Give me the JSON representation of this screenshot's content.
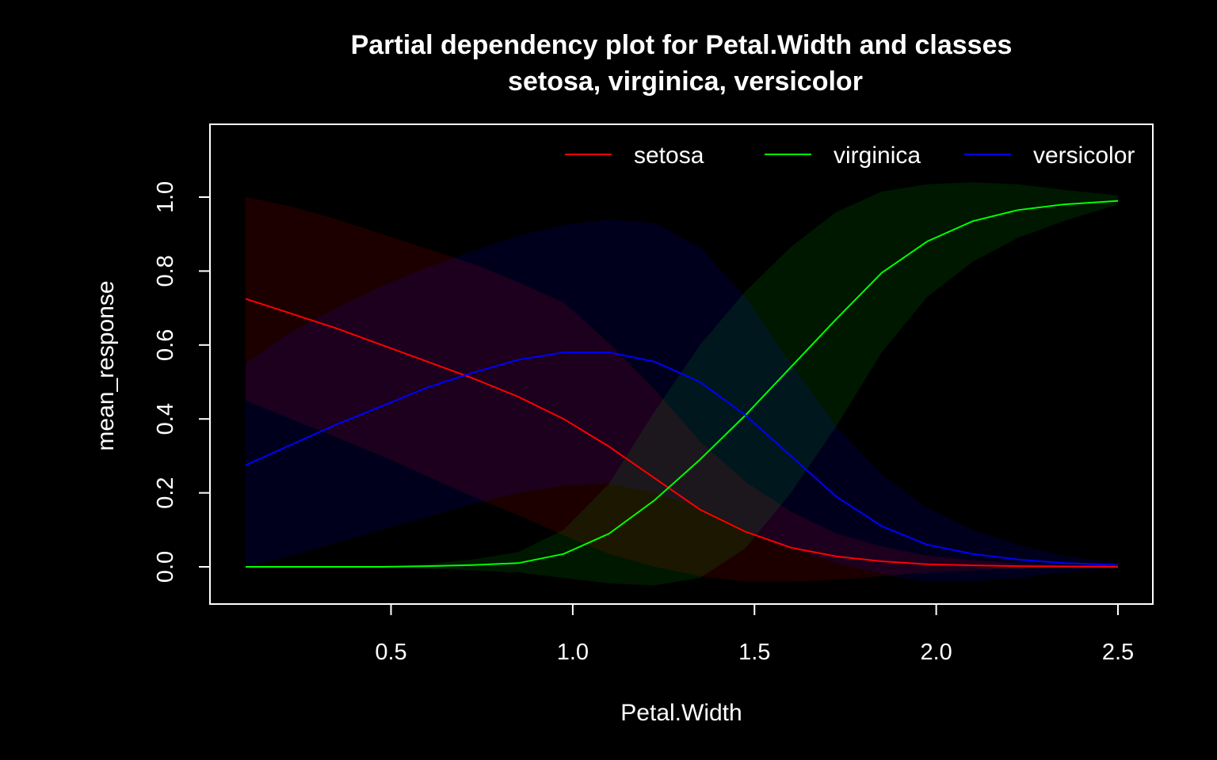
{
  "chart_data": {
    "type": "line",
    "title_lines": [
      "Partial dependency plot for Petal.Width and classes",
      "setosa, virginica, versicolor"
    ],
    "xlabel": "Petal.Width",
    "ylabel": "mean_response",
    "xlim": [
      0.0,
      2.6
    ],
    "ylim": [
      -0.1,
      1.2
    ],
    "x_ticks": [
      "0.5",
      "1.0",
      "1.5",
      "2.0",
      "2.5"
    ],
    "y_ticks": [
      "0.0",
      "0.2",
      "0.4",
      "0.6",
      "0.8",
      "1.0"
    ],
    "legend_position": "top-right",
    "grid": false,
    "background": "#000000",
    "x": [
      0.1,
      0.225,
      0.35,
      0.475,
      0.6,
      0.725,
      0.85,
      0.975,
      1.1,
      1.225,
      1.35,
      1.475,
      1.6,
      1.725,
      1.85,
      1.975,
      2.1,
      2.225,
      2.35,
      2.5
    ],
    "series": [
      {
        "name": "setosa",
        "color": "#ff0000",
        "band_color": "#1f0000",
        "values": [
          0.725,
          0.685,
          0.645,
          0.6,
          0.555,
          0.51,
          0.46,
          0.4,
          0.325,
          0.24,
          0.155,
          0.095,
          0.052,
          0.028,
          0.015,
          0.007,
          0.004,
          0.002,
          0.001,
          0.0
        ],
        "lower": [
          0.45,
          0.4,
          0.35,
          0.3,
          0.245,
          0.19,
          0.14,
          0.085,
          0.035,
          0.0,
          -0.025,
          -0.04,
          -0.04,
          -0.035,
          -0.025,
          -0.015,
          -0.01,
          -0.005,
          -0.003,
          -0.002
        ],
        "upper": [
          1.0,
          0.975,
          0.94,
          0.9,
          0.86,
          0.82,
          0.77,
          0.715,
          0.605,
          0.48,
          0.34,
          0.23,
          0.15,
          0.09,
          0.055,
          0.03,
          0.018,
          0.01,
          0.005,
          0.003
        ]
      },
      {
        "name": "virginica",
        "color": "#00ff00",
        "band_color": "#001a00",
        "values": [
          0.0,
          0.0,
          0.0,
          0.0,
          0.002,
          0.005,
          0.01,
          0.035,
          0.09,
          0.18,
          0.29,
          0.41,
          0.54,
          0.67,
          0.795,
          0.88,
          0.935,
          0.965,
          0.98,
          0.99
        ],
        "lower": [
          0.0,
          0.0,
          0.0,
          0.0,
          -0.005,
          -0.01,
          -0.015,
          -0.03,
          -0.045,
          -0.05,
          -0.03,
          0.05,
          0.2,
          0.38,
          0.58,
          0.73,
          0.825,
          0.89,
          0.935,
          0.98
        ],
        "upper": [
          0.0,
          0.0,
          0.0,
          0.0,
          0.008,
          0.02,
          0.04,
          0.1,
          0.225,
          0.42,
          0.6,
          0.745,
          0.865,
          0.96,
          1.015,
          1.035,
          1.04,
          1.035,
          1.02,
          1.005
        ]
      },
      {
        "name": "versicolor",
        "color": "#0000ff",
        "band_color": "#000020",
        "values": [
          0.275,
          0.33,
          0.385,
          0.435,
          0.485,
          0.525,
          0.56,
          0.58,
          0.58,
          0.555,
          0.5,
          0.41,
          0.3,
          0.19,
          0.11,
          0.06,
          0.035,
          0.02,
          0.01,
          0.005
        ],
        "lower": [
          0.0,
          0.03,
          0.065,
          0.1,
          0.135,
          0.17,
          0.2,
          0.22,
          0.225,
          0.2,
          0.16,
          0.1,
          0.05,
          0.01,
          -0.02,
          -0.04,
          -0.04,
          -0.03,
          -0.015,
          0.0
        ],
        "upper": [
          0.55,
          0.635,
          0.7,
          0.76,
          0.81,
          0.855,
          0.895,
          0.925,
          0.94,
          0.93,
          0.865,
          0.73,
          0.55,
          0.38,
          0.25,
          0.16,
          0.1,
          0.06,
          0.03,
          0.01
        ]
      }
    ]
  }
}
